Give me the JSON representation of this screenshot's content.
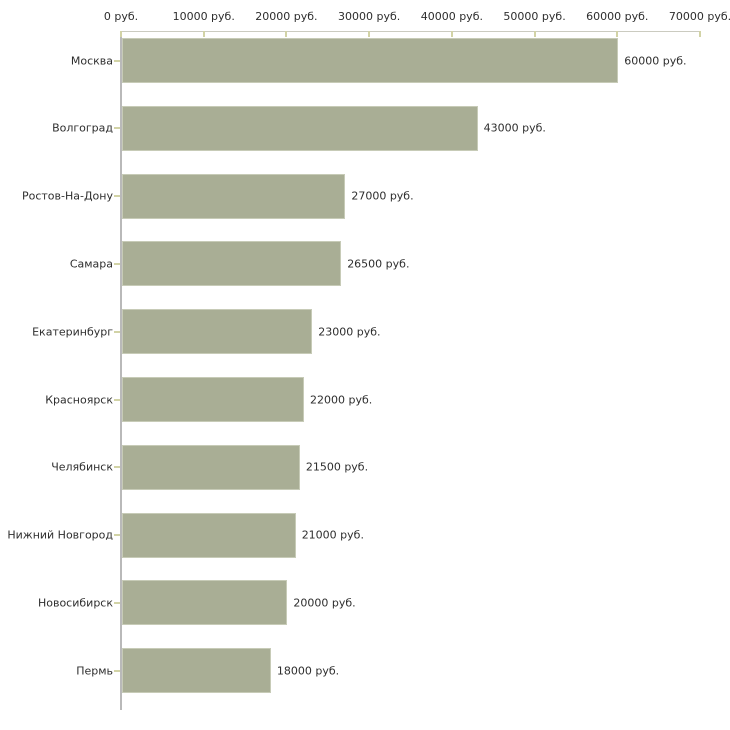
{
  "chart_data": {
    "type": "bar",
    "orientation": "horizontal",
    "title": "",
    "xlabel": "",
    "ylabel": "",
    "legend": false,
    "grid": false,
    "xlim": [
      0,
      70000
    ],
    "x_ticks": [
      0,
      10000,
      20000,
      30000,
      40000,
      50000,
      60000,
      70000
    ],
    "x_tick_labels": [
      "0 руб.",
      "10000 руб.",
      "20000 руб.",
      "30000 руб.",
      "40000 руб.",
      "50000 руб.",
      "60000 руб.",
      "70000 руб."
    ],
    "categories": [
      "Москва",
      "Волгоград",
      "Ростов-На-Дону",
      "Самара",
      "Екатеринбург",
      "Красноярск",
      "Челябинск",
      "Нижний Новгород",
      "Новосибирск",
      "Пермь"
    ],
    "values": [
      60000,
      43000,
      27000,
      26500,
      23000,
      22000,
      21500,
      21000,
      20000,
      18000
    ],
    "value_labels": [
      "60000 руб.",
      "43000 руб.",
      "27000 руб.",
      "26500 руб.",
      "23000 руб.",
      "22000 руб.",
      "21500 руб.",
      "21000 руб.",
      "20000 руб.",
      "18000 руб."
    ],
    "colors": {
      "bar_fill": "#a9ae95",
      "bar_border": "#c7cbb7",
      "x_axis_line": "#cbcbc0",
      "y_axis_line": "#b9b9b9",
      "tick": "#d2d3a6",
      "text": "#2e2e2e",
      "background": "#ffffff"
    }
  }
}
